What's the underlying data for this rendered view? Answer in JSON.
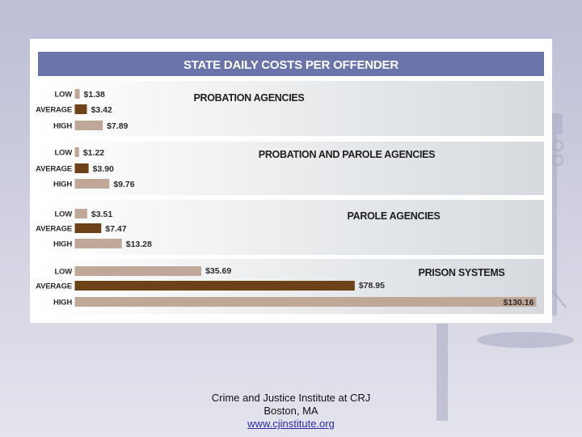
{
  "chart_data": {
    "type": "bar",
    "orientation": "horizontal",
    "title": "STATE DAILY COSTS PER OFFENDER",
    "categories": [
      "LOW",
      "AVERAGE",
      "HIGH"
    ],
    "groups": [
      {
        "name": "PROBATION AGENCIES",
        "values": [
          1.38,
          3.42,
          7.89
        ],
        "labels": [
          "$1.38",
          "$3.42",
          "$7.89"
        ]
      },
      {
        "name": "PROBATION AND PAROLE AGENCIES",
        "values": [
          1.22,
          3.9,
          9.76
        ],
        "labels": [
          "$1.22",
          "$3.90",
          "$9.76"
        ]
      },
      {
        "name": "PAROLE AGENCIES",
        "values": [
          3.51,
          7.47,
          13.28
        ],
        "labels": [
          "$3.51",
          "$7.47",
          "$13.28"
        ]
      },
      {
        "name": "PRISON SYSTEMS",
        "values": [
          35.69,
          78.95,
          130.16
        ],
        "labels": [
          "$35.69",
          "$78.95",
          "$130.16"
        ]
      }
    ],
    "xlim": [
      0,
      130.16
    ],
    "grid": false,
    "legend": "none",
    "colors": {
      "title_bar": "#6a74ab",
      "low": "#c0a898",
      "average": "#6e4218",
      "high": "#c0a898",
      "panel_start": "#ffffff",
      "panel_end": "#d6dade"
    }
  },
  "footer": {
    "line1": "Crime and Justice Institute at CRJ",
    "line2": "Boston, MA",
    "link": "www.cjinstitute.org"
  }
}
